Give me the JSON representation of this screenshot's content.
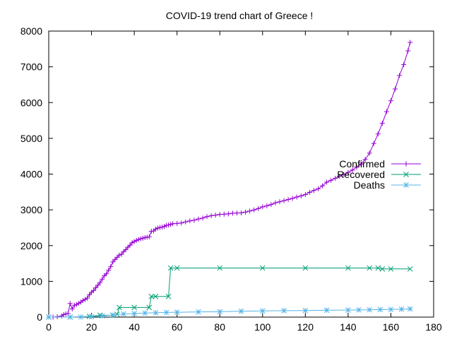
{
  "chart_data": {
    "type": "line",
    "title": "COVID-19 trend chart of Greece !",
    "xlim": [
      0,
      180
    ],
    "ylim": [
      0,
      8000
    ],
    "x_ticks": [
      0,
      20,
      40,
      60,
      80,
      100,
      120,
      140,
      160,
      180
    ],
    "y_ticks": [
      0,
      1000,
      2000,
      3000,
      4000,
      5000,
      6000,
      7000,
      8000
    ],
    "grid": false,
    "legend_position": "right-center",
    "series": [
      {
        "name": "Confirmed",
        "color": "#9400d3",
        "marker": "plus",
        "points": [
          [
            0,
            0
          ],
          [
            2,
            0
          ],
          [
            4,
            10
          ],
          [
            6,
            31
          ],
          [
            7,
            73
          ],
          [
            8,
            89
          ],
          [
            9,
            99
          ],
          [
            10,
            380
          ],
          [
            11,
            228
          ],
          [
            12,
            331
          ],
          [
            13,
            352
          ],
          [
            14,
            387
          ],
          [
            15,
            418
          ],
          [
            16,
            464
          ],
          [
            17,
            495
          ],
          [
            18,
            530
          ],
          [
            19,
            624
          ],
          [
            20,
            695
          ],
          [
            21,
            743
          ],
          [
            22,
            821
          ],
          [
            23,
            892
          ],
          [
            24,
            966
          ],
          [
            25,
            1061
          ],
          [
            26,
            1156
          ],
          [
            27,
            1212
          ],
          [
            28,
            1314
          ],
          [
            29,
            1415
          ],
          [
            30,
            1544
          ],
          [
            31,
            1613
          ],
          [
            32,
            1673
          ],
          [
            33,
            1735
          ],
          [
            34,
            1755
          ],
          [
            35,
            1832
          ],
          [
            36,
            1884
          ],
          [
            37,
            1955
          ],
          [
            38,
            2011
          ],
          [
            39,
            2081
          ],
          [
            40,
            2114
          ],
          [
            41,
            2145
          ],
          [
            42,
            2170
          ],
          [
            43,
            2192
          ],
          [
            44,
            2207
          ],
          [
            45,
            2224
          ],
          [
            46,
            2235
          ],
          [
            47,
            2245
          ],
          [
            48,
            2401
          ],
          [
            49,
            2408
          ],
          [
            50,
            2463
          ],
          [
            51,
            2490
          ],
          [
            52,
            2506
          ],
          [
            53,
            2517
          ],
          [
            54,
            2534
          ],
          [
            55,
            2566
          ],
          [
            56,
            2576
          ],
          [
            57,
            2591
          ],
          [
            58,
            2612
          ],
          [
            60,
            2620
          ],
          [
            62,
            2632
          ],
          [
            64,
            2663
          ],
          [
            66,
            2691
          ],
          [
            68,
            2710
          ],
          [
            70,
            2744
          ],
          [
            72,
            2770
          ],
          [
            74,
            2810
          ],
          [
            76,
            2836
          ],
          [
            78,
            2852
          ],
          [
            80,
            2872
          ],
          [
            82,
            2878
          ],
          [
            84,
            2888
          ],
          [
            86,
            2906
          ],
          [
            88,
            2910
          ],
          [
            90,
            2915
          ],
          [
            92,
            2937
          ],
          [
            94,
            2967
          ],
          [
            96,
            2997
          ],
          [
            98,
            3037
          ],
          [
            100,
            3083
          ],
          [
            102,
            3112
          ],
          [
            104,
            3148
          ],
          [
            106,
            3196
          ],
          [
            108,
            3226
          ],
          [
            110,
            3256
          ],
          [
            112,
            3289
          ],
          [
            114,
            3321
          ],
          [
            116,
            3358
          ],
          [
            118,
            3390
          ],
          [
            120,
            3427
          ],
          [
            122,
            3490
          ],
          [
            124,
            3542
          ],
          [
            126,
            3588
          ],
          [
            128,
            3672
          ],
          [
            130,
            3774
          ],
          [
            132,
            3826
          ],
          [
            134,
            3883
          ],
          [
            136,
            3939
          ],
          [
            138,
            3990
          ],
          [
            140,
            4048
          ],
          [
            142,
            4112
          ],
          [
            144,
            4193
          ],
          [
            146,
            4279
          ],
          [
            148,
            4408
          ],
          [
            150,
            4587
          ],
          [
            152,
            4855
          ],
          [
            154,
            5123
          ],
          [
            156,
            5423
          ],
          [
            158,
            5747
          ],
          [
            160,
            6050
          ],
          [
            162,
            6381
          ],
          [
            164,
            6756
          ],
          [
            166,
            7061
          ],
          [
            168,
            7447
          ],
          [
            169,
            7684
          ]
        ]
      },
      {
        "name": "Recovered",
        "color": "#009e73",
        "marker": "cross",
        "points": [
          [
            0,
            0
          ],
          [
            10,
            0
          ],
          [
            19,
            19
          ],
          [
            24,
            52
          ],
          [
            30,
            52
          ],
          [
            32,
            78
          ],
          [
            33,
            269
          ],
          [
            40,
            269
          ],
          [
            47,
            269
          ],
          [
            48,
            577
          ],
          [
            50,
            577
          ],
          [
            56,
            577
          ],
          [
            57,
            1374
          ],
          [
            60,
            1374
          ],
          [
            80,
            1374
          ],
          [
            100,
            1374
          ],
          [
            120,
            1374
          ],
          [
            140,
            1374
          ],
          [
            150,
            1374
          ],
          [
            154,
            1374
          ],
          [
            156,
            1347
          ],
          [
            160,
            1347
          ],
          [
            169,
            1347
          ]
        ]
      },
      {
        "name": "Deaths",
        "color": "#56b4e9",
        "marker": "star",
        "points": [
          [
            0,
            0
          ],
          [
            10,
            1
          ],
          [
            15,
            4
          ],
          [
            20,
            13
          ],
          [
            25,
            32
          ],
          [
            30,
            59
          ],
          [
            35,
            86
          ],
          [
            40,
            102
          ],
          [
            45,
            113
          ],
          [
            50,
            121
          ],
          [
            55,
            130
          ],
          [
            60,
            136
          ],
          [
            70,
            146
          ],
          [
            80,
            151
          ],
          [
            90,
            165
          ],
          [
            100,
            173
          ],
          [
            110,
            180
          ],
          [
            120,
            183
          ],
          [
            130,
            192
          ],
          [
            140,
            197
          ],
          [
            145,
            201
          ],
          [
            150,
            206
          ],
          [
            155,
            211
          ],
          [
            160,
            214
          ],
          [
            165,
            220
          ],
          [
            169,
            230
          ]
        ]
      }
    ]
  }
}
